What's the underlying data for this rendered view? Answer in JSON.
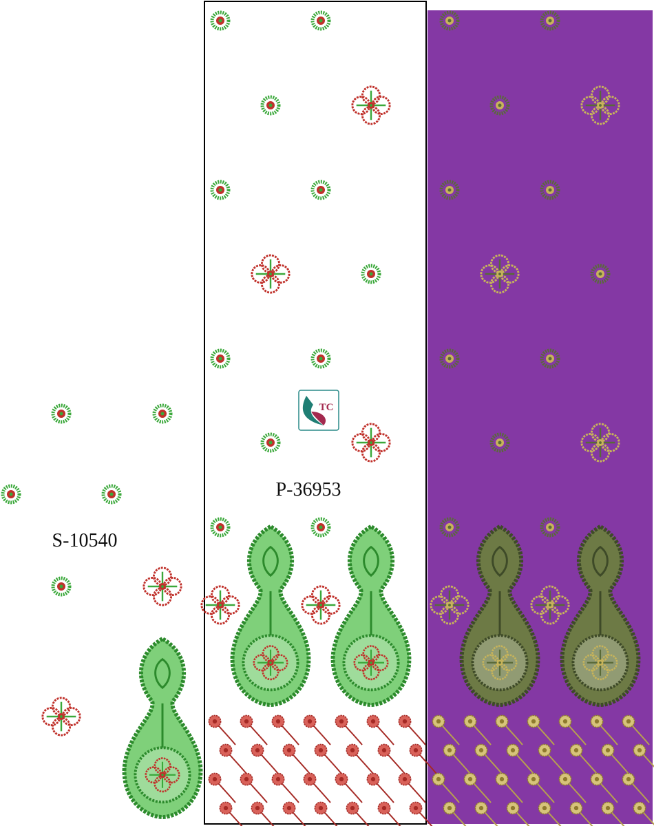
{
  "labels": {
    "left": "S-10540",
    "center": "P-36953"
  },
  "logo": {
    "text": "TC"
  }
}
